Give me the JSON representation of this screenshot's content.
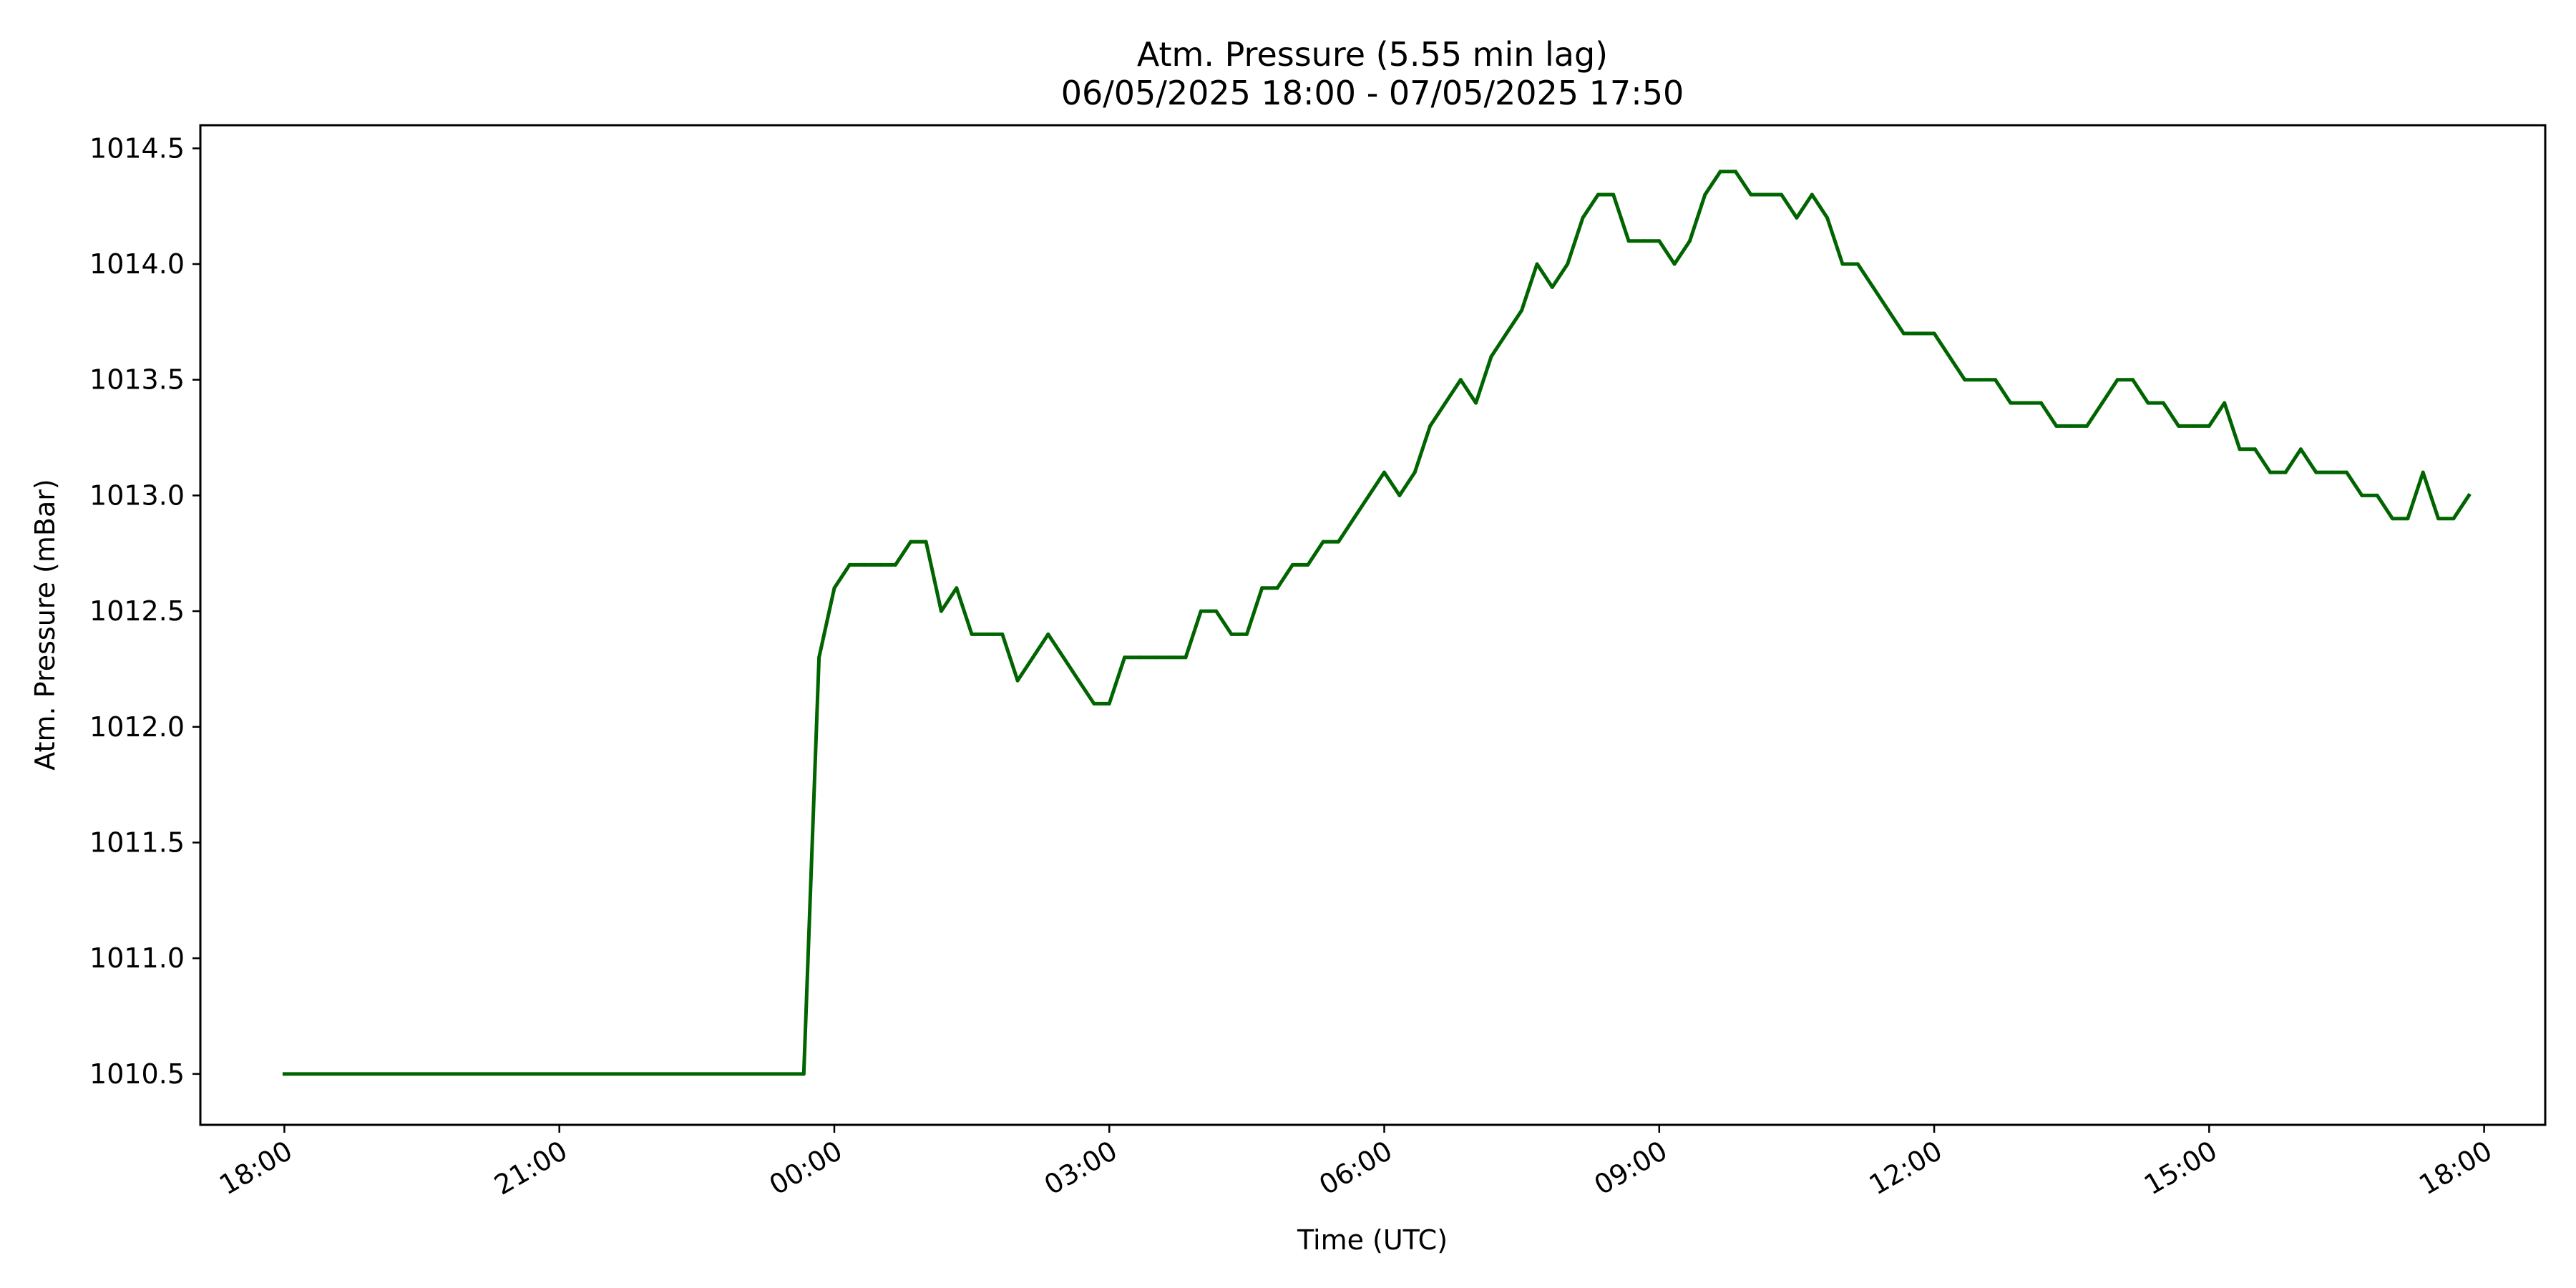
{
  "chart_data": {
    "type": "line",
    "title": "Atm. Pressure (5.55 min lag)",
    "subtitle": "06/05/2025 18:00 - 07/05/2025 17:50",
    "xlabel": "Time (UTC)",
    "ylabel": "Atm. Pressure (mBar)",
    "xlim": [
      "06/05/2025 17:05",
      "07/05/2025 18:40"
    ],
    "ylim": [
      1010.28,
      1014.6
    ],
    "grid": false,
    "legend": false,
    "series_color": "#006400",
    "x_ticks": [
      "18:00",
      "21:00",
      "00:00",
      "03:00",
      "06:00",
      "09:00",
      "12:00",
      "15:00",
      "18:00"
    ],
    "y_ticks": [
      "1010.5",
      "1011.0",
      "1011.5",
      "1012.0",
      "1012.5",
      "1013.0",
      "1013.5",
      "1014.0",
      "1014.5"
    ],
    "x": [
      "06/05/2025 18:00",
      "06/05/2025 23:40",
      "06/05/2025 23:50",
      "07/05/2025 00:00",
      "07/05/2025 00:10",
      "07/05/2025 00:20",
      "07/05/2025 00:30",
      "07/05/2025 00:40",
      "07/05/2025 00:50",
      "07/05/2025 01:00",
      "07/05/2025 01:10",
      "07/05/2025 01:20",
      "07/05/2025 01:30",
      "07/05/2025 01:40",
      "07/05/2025 01:50",
      "07/05/2025 02:00",
      "07/05/2025 02:10",
      "07/05/2025 02:20",
      "07/05/2025 02:30",
      "07/05/2025 02:40",
      "07/05/2025 02:50",
      "07/05/2025 03:00",
      "07/05/2025 03:10",
      "07/05/2025 03:20",
      "07/05/2025 03:30",
      "07/05/2025 03:40",
      "07/05/2025 03:50",
      "07/05/2025 04:00",
      "07/05/2025 04:10",
      "07/05/2025 04:20",
      "07/05/2025 04:30",
      "07/05/2025 04:40",
      "07/05/2025 04:50",
      "07/05/2025 05:00",
      "07/05/2025 05:10",
      "07/05/2025 05:20",
      "07/05/2025 05:30",
      "07/05/2025 05:40",
      "07/05/2025 05:50",
      "07/05/2025 06:00",
      "07/05/2025 06:10",
      "07/05/2025 06:20",
      "07/05/2025 06:30",
      "07/05/2025 06:40",
      "07/05/2025 06:50",
      "07/05/2025 07:00",
      "07/05/2025 07:10",
      "07/05/2025 07:20",
      "07/05/2025 07:30",
      "07/05/2025 07:40",
      "07/05/2025 07:50",
      "07/05/2025 08:00",
      "07/05/2025 08:10",
      "07/05/2025 08:20",
      "07/05/2025 08:30",
      "07/05/2025 08:40",
      "07/05/2025 08:50",
      "07/05/2025 09:00",
      "07/05/2025 09:10",
      "07/05/2025 09:20",
      "07/05/2025 09:30",
      "07/05/2025 09:40",
      "07/05/2025 09:50",
      "07/05/2025 10:00",
      "07/05/2025 10:10",
      "07/05/2025 10:20",
      "07/05/2025 10:30",
      "07/05/2025 10:40",
      "07/05/2025 10:50",
      "07/05/2025 11:00",
      "07/05/2025 11:10",
      "07/05/2025 11:20",
      "07/05/2025 11:30",
      "07/05/2025 11:40",
      "07/05/2025 11:50",
      "07/05/2025 12:00",
      "07/05/2025 12:10",
      "07/05/2025 12:20",
      "07/05/2025 12:30",
      "07/05/2025 12:40",
      "07/05/2025 12:50",
      "07/05/2025 13:00",
      "07/05/2025 13:10",
      "07/05/2025 13:20",
      "07/05/2025 13:30",
      "07/05/2025 13:40",
      "07/05/2025 13:50",
      "07/05/2025 14:00",
      "07/05/2025 14:10",
      "07/05/2025 14:20",
      "07/05/2025 14:30",
      "07/05/2025 14:40",
      "07/05/2025 14:50",
      "07/05/2025 15:00",
      "07/05/2025 15:10",
      "07/05/2025 15:20",
      "07/05/2025 15:30",
      "07/05/2025 15:40",
      "07/05/2025 15:50",
      "07/05/2025 16:00",
      "07/05/2025 16:10",
      "07/05/2025 16:20",
      "07/05/2025 16:30",
      "07/05/2025 16:40",
      "07/05/2025 16:50",
      "07/05/2025 17:00",
      "07/05/2025 17:10",
      "07/05/2025 17:20",
      "07/05/2025 17:30",
      "07/05/2025 17:40",
      "07/05/2025 17:50"
    ],
    "series": [
      {
        "values": [
          1010.5,
          1010.5,
          1012.3,
          1012.6,
          1012.7,
          1012.7,
          1012.7,
          1012.7,
          1012.8,
          1012.8,
          1012.5,
          1012.6,
          1012.4,
          1012.4,
          1012.4,
          1012.2,
          1012.3,
          1012.4,
          1012.3,
          1012.2,
          1012.1,
          1012.1,
          1012.3,
          1012.3,
          1012.3,
          1012.3,
          1012.3,
          1012.5,
          1012.5,
          1012.4,
          1012.4,
          1012.6,
          1012.6,
          1012.7,
          1012.7,
          1012.8,
          1012.8,
          1012.9,
          1013.0,
          1013.1,
          1013.0,
          1013.1,
          1013.3,
          1013.4,
          1013.5,
          1013.4,
          1013.6,
          1013.7,
          1013.8,
          1014.0,
          1013.9,
          1014.0,
          1014.2,
          1014.3,
          1014.3,
          1014.1,
          1014.1,
          1014.1,
          1014.0,
          1014.1,
          1014.3,
          1014.4,
          1014.4,
          1014.3,
          1014.3,
          1014.3,
          1014.2,
          1014.3,
          1014.2,
          1014.0,
          1014.0,
          1013.9,
          1013.8,
          1013.7,
          1013.7,
          1013.7,
          1013.6,
          1013.5,
          1013.5,
          1013.5,
          1013.4,
          1013.4,
          1013.4,
          1013.3,
          1013.3,
          1013.3,
          1013.4,
          1013.5,
          1013.5,
          1013.4,
          1013.4,
          1013.3,
          1013.3,
          1013.3,
          1013.4,
          1013.2,
          1013.2,
          1013.1,
          1013.1,
          1013.2,
          1013.1,
          1013.1,
          1013.1,
          1013.0,
          1013.0,
          1012.9,
          1012.9,
          1013.1,
          1012.9,
          1012.9,
          1013.0
        ]
      }
    ]
  }
}
